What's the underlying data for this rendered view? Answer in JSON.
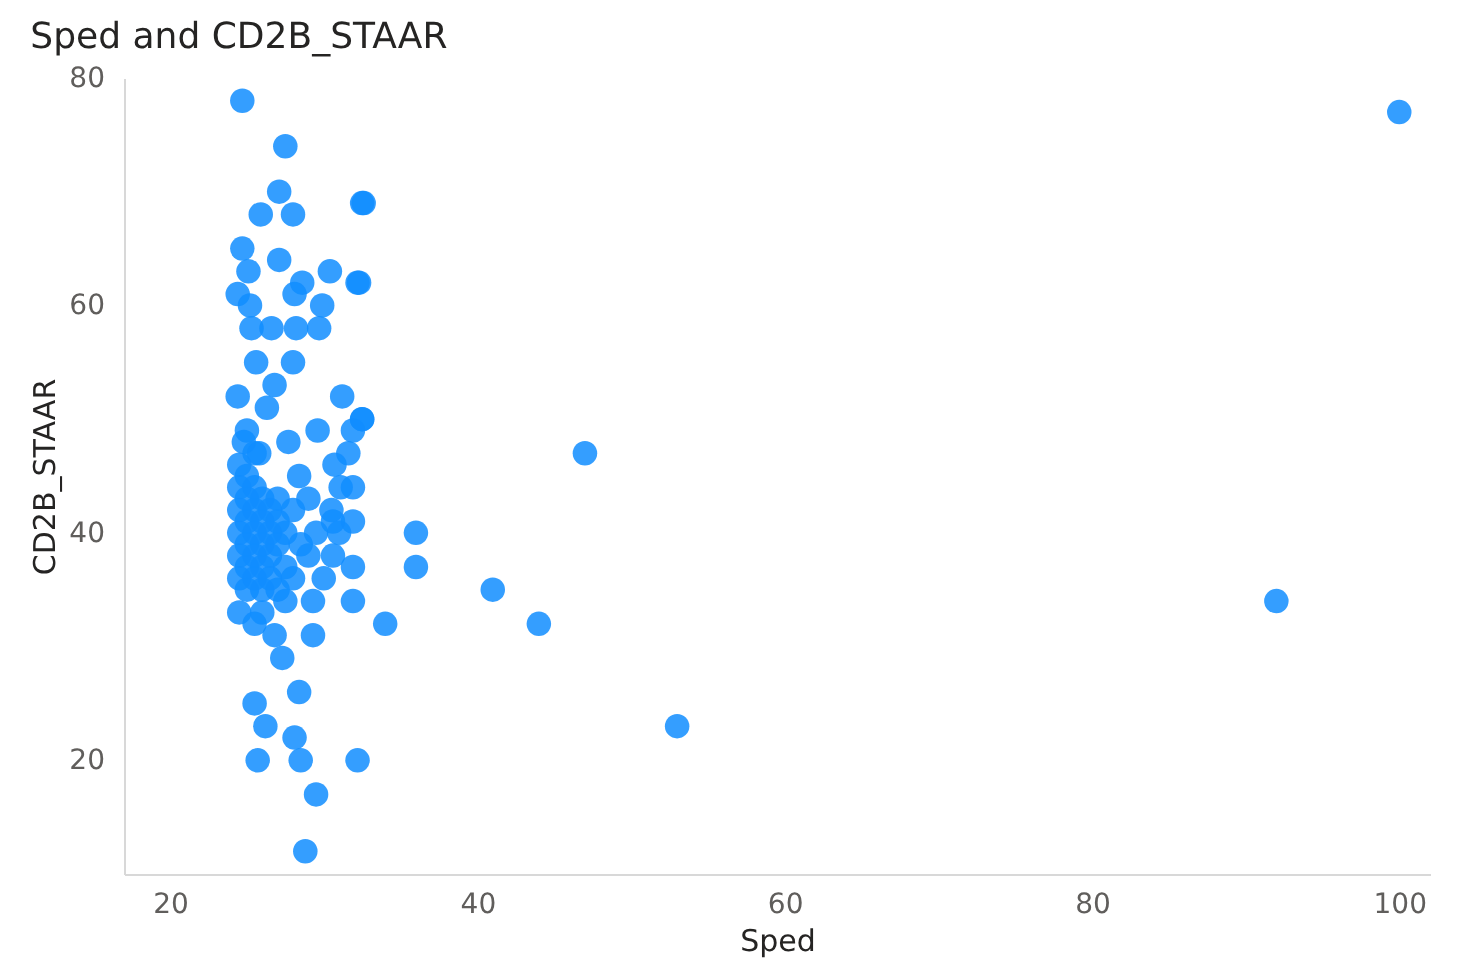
{
  "chart_data": {
    "type": "scatter",
    "title": "Sped and CD2B_STAAR",
    "xlabel": "Sped",
    "ylabel": "CD2B_STAAR",
    "xlim": [
      17,
      102
    ],
    "ylim": [
      10,
      80
    ],
    "xticks": [
      20,
      40,
      60,
      80,
      100
    ],
    "yticks": [
      20,
      40,
      60,
      80
    ],
    "grid": false,
    "series": [
      {
        "color": "#118dff",
        "x": [
          100,
          92,
          53,
          47,
          41,
          44,
          36,
          36,
          34,
          32.5,
          32.2,
          32.2,
          32.5,
          31.9,
          31.9,
          31.9,
          31.9,
          30.6,
          30.6,
          29.3,
          29.3,
          27.3,
          28.4,
          25.5,
          26.2,
          28.1,
          25.7,
          28.5,
          29.5,
          28.8,
          24.5,
          25.5,
          26.8,
          24.7,
          27.5,
          27.1,
          25.9,
          28,
          32.6,
          24.7,
          27.1,
          25.1,
          28.6,
          30.4,
          32.3,
          24.4,
          28.1,
          25.2,
          29.9,
          29.7,
          28.2,
          26.6,
          25.3,
          25.6,
          28,
          26.8,
          31.2,
          24.4,
          32.5,
          29.6,
          31.9,
          31.6,
          27.7,
          30.7,
          28.4,
          31.1,
          25.5,
          25,
          24.5,
          24.5,
          24.5,
          24.5,
          24.5,
          24.5,
          25,
          25,
          25,
          25,
          25,
          25,
          25.5,
          25.5,
          25.5,
          25.5,
          25.5,
          26,
          26,
          26,
          26,
          26,
          26.5,
          26.5,
          26.5,
          26.5,
          27,
          27,
          27,
          27,
          27.5,
          27.5,
          28,
          28,
          28.5,
          29,
          29,
          29.5,
          30,
          30.5,
          31,
          26,
          27.5,
          24.8,
          25.8,
          26.3
        ],
        "values": [
          77,
          34,
          23,
          47,
          35,
          32,
          40,
          37,
          32,
          69,
          62,
          20,
          50,
          34,
          37,
          44,
          41,
          38,
          41,
          31,
          34,
          29,
          26,
          25,
          23,
          22,
          20,
          20,
          17,
          12,
          33,
          32,
          31,
          78,
          74,
          70,
          68,
          68,
          69,
          65,
          64,
          63,
          62,
          63,
          62,
          61,
          61,
          60,
          60,
          58,
          58,
          58,
          58,
          55,
          55,
          53,
          52,
          52,
          50,
          49,
          49,
          47,
          48,
          46,
          45,
          44,
          47,
          49,
          36,
          38,
          40,
          42,
          44,
          46,
          35,
          37,
          39,
          41,
          43,
          45,
          36,
          38,
          40,
          42,
          44,
          35,
          37,
          39,
          41,
          43,
          36,
          38,
          40,
          42,
          35,
          39,
          41,
          43,
          37,
          40,
          36,
          42,
          39,
          38,
          43,
          40,
          36,
          42,
          40,
          33,
          34,
          48,
          47,
          51
        ]
      }
    ]
  }
}
